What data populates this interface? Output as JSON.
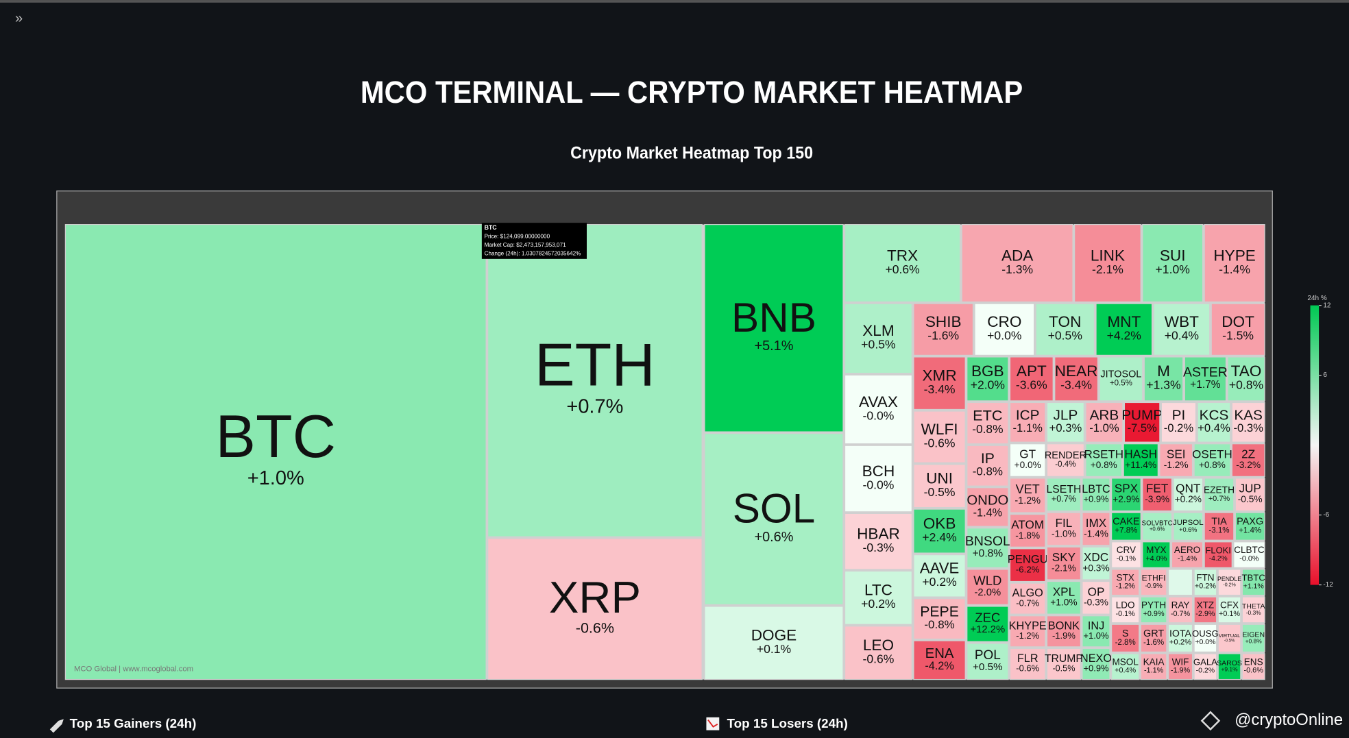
{
  "page": {
    "nav_icon": "»",
    "title": "MCO TERMINAL — CRYPTO MARKET HEATMAP"
  },
  "heatmap": {
    "title": "Crypto Market Heatmap Top 150",
    "watermark": "MCO Global | www.mcoglobal.com",
    "tooltip": [
      "BTC",
      "Price: $124,099.00000000",
      "Market Cap: $2,473,157,953,071",
      "Change (24h): 1.0307824572035642%"
    ],
    "colorbar": {
      "title": "24h %",
      "range": [
        -12,
        12
      ],
      "ticks": [
        12,
        6,
        -6,
        -12
      ]
    },
    "tiles": [
      {
        "symbol": "BTC",
        "change": "+1.0%"
      },
      {
        "symbol": "ETH",
        "change": "+0.7%"
      },
      {
        "symbol": "XRP",
        "change": "-0.6%"
      },
      {
        "symbol": "BNB",
        "change": "+5.1%"
      },
      {
        "symbol": "SOL",
        "change": "+0.6%"
      },
      {
        "symbol": "DOGE",
        "change": "+0.1%"
      },
      {
        "symbol": "TRX",
        "change": "+0.6%"
      },
      {
        "symbol": "ADA",
        "change": "-1.3%"
      },
      {
        "symbol": "LINK",
        "change": "-2.1%"
      },
      {
        "symbol": "SUI",
        "change": "+1.0%"
      },
      {
        "symbol": "HYPE",
        "change": "-1.4%"
      },
      {
        "symbol": "XLM",
        "change": "+0.5%"
      },
      {
        "symbol": "AVAX",
        "change": "-0.0%"
      },
      {
        "symbol": "BCH",
        "change": "-0.0%"
      },
      {
        "symbol": "HBAR",
        "change": "-0.3%"
      },
      {
        "symbol": "LTC",
        "change": "+0.2%"
      },
      {
        "symbol": "LEO",
        "change": "-0.6%"
      },
      {
        "symbol": "SHIB",
        "change": "-1.6%"
      },
      {
        "symbol": "CRO",
        "change": "+0.0%"
      },
      {
        "symbol": "TON",
        "change": "+0.5%"
      },
      {
        "symbol": "MNT",
        "change": "+4.2%"
      },
      {
        "symbol": "WBT",
        "change": "+0.4%"
      },
      {
        "symbol": "DOT",
        "change": "-1.5%"
      },
      {
        "symbol": "XMR",
        "change": "-3.4%"
      },
      {
        "symbol": "WLFI",
        "change": "-0.6%"
      },
      {
        "symbol": "UNI",
        "change": "-0.5%"
      },
      {
        "symbol": "OKB",
        "change": "+2.4%"
      },
      {
        "symbol": "AAVE",
        "change": "+0.2%"
      },
      {
        "symbol": "PEPE",
        "change": "-0.8%"
      },
      {
        "symbol": "ENA",
        "change": "-4.2%"
      },
      {
        "symbol": "BGB",
        "change": "+2.0%"
      },
      {
        "symbol": "ETC",
        "change": "-0.8%"
      },
      {
        "symbol": "IP",
        "change": "-0.8%"
      },
      {
        "symbol": "ONDO",
        "change": "-1.4%"
      },
      {
        "symbol": "BNSOL",
        "change": "+0.8%"
      },
      {
        "symbol": "WLD",
        "change": "-2.0%"
      },
      {
        "symbol": "ZEC",
        "change": "+12.2%"
      },
      {
        "symbol": "POL",
        "change": "+0.5%"
      },
      {
        "symbol": "APT",
        "change": "-3.6%"
      },
      {
        "symbol": "NEAR",
        "change": "-3.4%"
      },
      {
        "symbol": "JITOSOL",
        "change": "+0.5%"
      },
      {
        "symbol": "M",
        "change": "+1.3%"
      },
      {
        "symbol": "ASTER",
        "change": "+1.7%"
      },
      {
        "symbol": "TAO",
        "change": "+0.8%"
      },
      {
        "symbol": "ICP",
        "change": "-1.1%"
      },
      {
        "symbol": "JLP",
        "change": "+0.3%"
      },
      {
        "symbol": "ARB",
        "change": "-1.0%"
      },
      {
        "symbol": "PUMP",
        "change": "-7.5%"
      },
      {
        "symbol": "PI",
        "change": "-0.2%"
      },
      {
        "symbol": "KCS",
        "change": "+0.4%"
      },
      {
        "symbol": "KAS",
        "change": "-0.3%"
      },
      {
        "symbol": "GT",
        "change": "+0.0%"
      },
      {
        "symbol": "RENDER",
        "change": "-0.4%"
      },
      {
        "symbol": "RSETH",
        "change": "+0.8%"
      },
      {
        "symbol": "HASH",
        "change": "+11.4%"
      },
      {
        "symbol": "SEI",
        "change": "-1.2%"
      },
      {
        "symbol": "OSETH",
        "change": "+0.8%"
      },
      {
        "symbol": "2Z",
        "change": "-3.2%"
      },
      {
        "symbol": "VET",
        "change": "-1.2%"
      },
      {
        "symbol": "ATOM",
        "change": "-1.8%"
      },
      {
        "symbol": "PENGU",
        "change": "-6.2%"
      },
      {
        "symbol": "ALGO",
        "change": "-0.7%"
      },
      {
        "symbol": "KHYPE",
        "change": "-1.2%"
      },
      {
        "symbol": "FLR",
        "change": "-0.6%"
      },
      {
        "symbol": "LSETH",
        "change": "+0.7%"
      },
      {
        "symbol": "LBTC",
        "change": "+0.9%"
      },
      {
        "symbol": "SPX",
        "change": "+2.9%"
      },
      {
        "symbol": "FET",
        "change": "-3.9%"
      },
      {
        "symbol": "QNT",
        "change": "+0.2%"
      },
      {
        "symbol": "EZETH",
        "change": "+0.7%"
      },
      {
        "symbol": "JUP",
        "change": "-0.5%"
      },
      {
        "symbol": "FIL",
        "change": "-1.0%"
      },
      {
        "symbol": "SKY",
        "change": "-2.1%"
      },
      {
        "symbol": "XPL",
        "change": "+1.0%"
      },
      {
        "symbol": "BONK",
        "change": "-1.9%"
      },
      {
        "symbol": "TRUMP",
        "change": "-0.5%"
      },
      {
        "symbol": "IMX",
        "change": "-1.4%"
      },
      {
        "symbol": "XDC",
        "change": "+0.3%"
      },
      {
        "symbol": "OP",
        "change": "-0.3%"
      },
      {
        "symbol": "INJ",
        "change": "+1.0%"
      },
      {
        "symbol": "NEXO",
        "change": "+0.9%"
      },
      {
        "symbol": "CAKE",
        "change": "+7.8%"
      },
      {
        "symbol": "SOLVBTC",
        "change": "+0.6%"
      },
      {
        "symbol": "JUPSOL",
        "change": "+0.6%"
      },
      {
        "symbol": "TIA",
        "change": "-3.1%"
      },
      {
        "symbol": "PAXG",
        "change": "+1.4%"
      },
      {
        "symbol": "CRV",
        "change": "-0.1%"
      },
      {
        "symbol": "MYX",
        "change": "+4.0%"
      },
      {
        "symbol": "AERO",
        "change": "-1.4%"
      },
      {
        "symbol": "FLOKI",
        "change": "-4.2%"
      },
      {
        "symbol": "CLBTC",
        "change": "-0.0%"
      },
      {
        "symbol": "STX",
        "change": "-1.2%"
      },
      {
        "symbol": "ETHFI",
        "change": "-0.9%"
      },
      {
        "symbol": "FTN",
        "change": "+0.2%"
      },
      {
        "symbol": "PENDLE",
        "change": "-0.2%"
      },
      {
        "symbol": "TBTC",
        "change": "+1.1%"
      },
      {
        "symbol": "LDO",
        "change": "-0.1%"
      },
      {
        "symbol": "PYTH",
        "change": "+0.9%"
      },
      {
        "symbol": "RAY",
        "change": "-0.7%"
      },
      {
        "symbol": "XTZ",
        "change": "-2.9%"
      },
      {
        "symbol": "CFX",
        "change": "+0.1%"
      },
      {
        "symbol": "THETA",
        "change": "-0.3%"
      },
      {
        "symbol": "S",
        "change": "-2.8%"
      },
      {
        "symbol": "GRT",
        "change": "-1.6%"
      },
      {
        "symbol": "IOTA",
        "change": "+0.2%"
      },
      {
        "symbol": "OUSG",
        "change": "+0.0%"
      },
      {
        "symbol": "VIRTUAL",
        "change": "-0.5%"
      },
      {
        "symbol": "EIGEN",
        "change": "+0.8%"
      },
      {
        "symbol": "MSOL",
        "change": "+0.4%"
      },
      {
        "symbol": "KAIA",
        "change": "-1.1%"
      },
      {
        "symbol": "WIF",
        "change": "-1.9%"
      },
      {
        "symbol": "GALA",
        "change": "-0.2%"
      },
      {
        "symbol": "SAROS",
        "change": "+9.1%"
      },
      {
        "symbol": "ENS",
        "change": "-0.6%"
      }
    ]
  },
  "footer": {
    "gainers": "Top 15 Gainers (24h)",
    "losers": "Top 15 Losers (24h)",
    "credit": "@cryptoOnline"
  }
}
